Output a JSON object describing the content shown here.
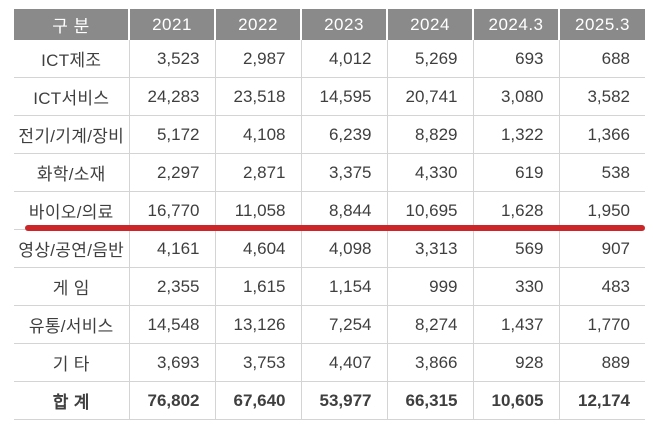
{
  "colors": {
    "header_bg": "#8a8a8a",
    "header_text": "#ffffff",
    "body_text": "#3f3f3f",
    "grid_line": "#d4d4d4",
    "highlight_red": "#cc2629"
  },
  "table": {
    "columns": [
      "구 분",
      "2021",
      "2022",
      "2023",
      "2024",
      "2024.3",
      "2025.3"
    ],
    "rows": [
      {
        "label": "ICT제조",
        "values": [
          "3,523",
          "2,987",
          "4,012",
          "5,269",
          "693",
          "688"
        ]
      },
      {
        "label": "ICT서비스",
        "values": [
          "24,283",
          "23,518",
          "14,595",
          "20,741",
          "3,080",
          "3,582"
        ]
      },
      {
        "label": "전기/기계/장비",
        "values": [
          "5,172",
          "4,108",
          "6,239",
          "8,829",
          "1,322",
          "1,366"
        ]
      },
      {
        "label": "화학/소재",
        "values": [
          "2,297",
          "2,871",
          "3,375",
          "4,330",
          "619",
          "538"
        ]
      },
      {
        "label": "바이오/의료",
        "values": [
          "16,770",
          "11,058",
          "8,844",
          "10,695",
          "1,628",
          "1,950"
        ],
        "highlighted": true
      },
      {
        "label": "영상/공연/음반",
        "values": [
          "4,161",
          "4,604",
          "4,098",
          "3,313",
          "569",
          "907"
        ]
      },
      {
        "label": "게 임",
        "values": [
          "2,355",
          "1,615",
          "1,154",
          "999",
          "330",
          "483"
        ]
      },
      {
        "label": "유통/서비스",
        "values": [
          "14,548",
          "13,126",
          "7,254",
          "8,274",
          "1,437",
          "1,770"
        ]
      },
      {
        "label": "기 타",
        "values": [
          "3,693",
          "3,753",
          "4,407",
          "3,866",
          "928",
          "889"
        ]
      }
    ],
    "total_row": {
      "label": "합 계",
      "values": [
        "76,802",
        "67,640",
        "53,977",
        "66,315",
        "10,605",
        "12,174"
      ]
    }
  },
  "chart_data": {
    "type": "table",
    "title": "",
    "columns": [
      "구 분",
      "2021",
      "2022",
      "2023",
      "2024",
      "2024.3",
      "2025.3"
    ],
    "rows": [
      [
        "ICT제조",
        3523,
        2987,
        4012,
        5269,
        693,
        688
      ],
      [
        "ICT서비스",
        24283,
        23518,
        14595,
        20741,
        3080,
        3582
      ],
      [
        "전기/기계/장비",
        5172,
        4108,
        6239,
        8829,
        1322,
        1366
      ],
      [
        "화학/소재",
        2297,
        2871,
        3375,
        4330,
        619,
        538
      ],
      [
        "바이오/의료",
        16770,
        11058,
        8844,
        10695,
        1628,
        1950
      ],
      [
        "영상/공연/음반",
        4161,
        4604,
        4098,
        3313,
        569,
        907
      ],
      [
        "게 임",
        2355,
        1615,
        1154,
        999,
        330,
        483
      ],
      [
        "유통/서비스",
        14548,
        13126,
        7254,
        8274,
        1437,
        1770
      ],
      [
        "기 타",
        3693,
        3753,
        4407,
        3866,
        928,
        889
      ],
      [
        "합 계",
        76802,
        67640,
        53977,
        66315,
        10605,
        12174
      ]
    ],
    "highlight": {
      "row": "바이오/의료",
      "style": "thick-red-underline"
    },
    "layout": {
      "header_fill": "#8a8a8a",
      "grid": true,
      "total_row_bold": true
    }
  }
}
